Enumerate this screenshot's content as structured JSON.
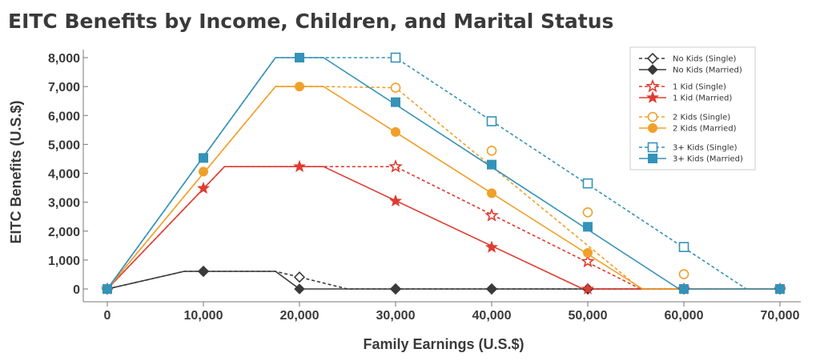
{
  "chart_data": {
    "type": "line",
    "title": "EITC Benefits by Income, Children, and Marital Status",
    "xlabel": "Family Earnings (U.S.$)",
    "ylabel": "EITC Benefits (U.S.$)",
    "xlim": [
      0,
      70000
    ],
    "ylim": [
      0,
      8000
    ],
    "x_ticks": [
      0,
      10000,
      20000,
      30000,
      40000,
      50000,
      60000,
      70000
    ],
    "x_tick_labels": [
      "0",
      "10,000",
      "20,000",
      "30,000",
      "40,000",
      "50,000",
      "60,000",
      "70,000"
    ],
    "y_ticks": [
      0,
      1000,
      2000,
      3000,
      4000,
      5000,
      6000,
      7000,
      8000
    ],
    "y_tick_labels": [
      "0",
      "1,000",
      "2,000",
      "3,000",
      "4,000",
      "5,000",
      "6,000",
      "7,000",
      "8,000"
    ],
    "grid": false,
    "legend_position": "top-right",
    "series": [
      {
        "name": "No Kids (Single)",
        "color": "#3a3a3a",
        "dash": true,
        "marker": "diamond",
        "filled": false,
        "line": [
          [
            0,
            0
          ],
          [
            8000,
            610
          ],
          [
            17500,
            610
          ],
          [
            20000,
            410
          ],
          [
            25000,
            0
          ],
          [
            70000,
            0
          ]
        ],
        "markers": [
          [
            0,
            0
          ],
          [
            10000,
            610
          ],
          [
            20000,
            410
          ],
          [
            30000,
            0
          ],
          [
            40000,
            0
          ],
          [
            50000,
            0
          ],
          [
            60000,
            0
          ],
          [
            70000,
            0
          ]
        ]
      },
      {
        "name": "No Kids (Married)",
        "color": "#3a3a3a",
        "dash": false,
        "marker": "diamond",
        "filled": true,
        "line": [
          [
            0,
            0
          ],
          [
            8000,
            610
          ],
          [
            10000,
            610
          ],
          [
            17500,
            610
          ],
          [
            20000,
            0
          ],
          [
            70000,
            0
          ]
        ],
        "markers": [
          [
            0,
            0
          ],
          [
            10000,
            610
          ],
          [
            20000,
            0
          ],
          [
            30000,
            0
          ],
          [
            40000,
            0
          ],
          [
            50000,
            0
          ],
          [
            60000,
            0
          ],
          [
            70000,
            0
          ]
        ]
      },
      {
        "name": "1 Kid (Single)",
        "color": "#e03c31",
        "dash": true,
        "marker": "star",
        "filled": false,
        "line": [
          [
            0,
            0
          ],
          [
            12200,
            4230
          ],
          [
            22500,
            4230
          ],
          [
            30000,
            4230
          ],
          [
            49500,
            1000
          ],
          [
            55500,
            0
          ]
        ],
        "markers": [
          [
            30000,
            4230
          ],
          [
            40000,
            2540
          ],
          [
            50000,
            950
          ]
        ]
      },
      {
        "name": "1 Kid (Married)",
        "color": "#e03c31",
        "dash": false,
        "marker": "star",
        "filled": true,
        "line": [
          [
            0,
            0
          ],
          [
            12200,
            4230
          ],
          [
            22500,
            4230
          ],
          [
            49500,
            0
          ],
          [
            70000,
            0
          ]
        ],
        "markers": [
          [
            0,
            0
          ],
          [
            10000,
            3480
          ],
          [
            20000,
            4230
          ],
          [
            30000,
            3040
          ],
          [
            40000,
            1440
          ],
          [
            50000,
            0
          ],
          [
            60000,
            0
          ],
          [
            70000,
            0
          ]
        ]
      },
      {
        "name": "2 Kids (Single)",
        "color": "#f0a02a",
        "dash": true,
        "marker": "circle",
        "filled": false,
        "line": [
          [
            0,
            0
          ],
          [
            17500,
            7000
          ],
          [
            22500,
            7000
          ],
          [
            30000,
            6960
          ],
          [
            55500,
            0
          ]
        ],
        "markers": [
          [
            30000,
            6960
          ],
          [
            40000,
            4780
          ],
          [
            50000,
            2650
          ],
          [
            60000,
            510
          ]
        ]
      },
      {
        "name": "2 Kids (Married)",
        "color": "#f0a02a",
        "dash": false,
        "marker": "circle",
        "filled": true,
        "line": [
          [
            0,
            0
          ],
          [
            17500,
            7000
          ],
          [
            22500,
            7000
          ],
          [
            55700,
            0
          ],
          [
            70000,
            0
          ]
        ],
        "markers": [
          [
            0,
            0
          ],
          [
            10000,
            4060
          ],
          [
            20000,
            7000
          ],
          [
            30000,
            5430
          ],
          [
            40000,
            3310
          ],
          [
            50000,
            1250
          ],
          [
            60000,
            0
          ],
          [
            70000,
            0
          ]
        ]
      },
      {
        "name": "3+ Kids (Single)",
        "color": "#3592b8",
        "dash": true,
        "marker": "square",
        "filled": false,
        "line": [
          [
            0,
            0
          ],
          [
            17500,
            8000
          ],
          [
            22500,
            8000
          ],
          [
            30000,
            8000
          ],
          [
            66500,
            0
          ]
        ],
        "markers": [
          [
            30000,
            8000
          ],
          [
            40000,
            5800
          ],
          [
            50000,
            3650
          ],
          [
            60000,
            1450
          ]
        ]
      },
      {
        "name": "3+ Kids (Married)",
        "color": "#3592b8",
        "dash": false,
        "marker": "square",
        "filled": true,
        "line": [
          [
            0,
            0
          ],
          [
            17500,
            8000
          ],
          [
            22500,
            8000
          ],
          [
            59500,
            0
          ],
          [
            70000,
            0
          ]
        ],
        "markers": [
          [
            0,
            0
          ],
          [
            10000,
            4530
          ],
          [
            20000,
            8000
          ],
          [
            30000,
            6460
          ],
          [
            40000,
            4300
          ],
          [
            50000,
            2150
          ],
          [
            60000,
            0
          ],
          [
            70000,
            0
          ]
        ]
      }
    ]
  }
}
